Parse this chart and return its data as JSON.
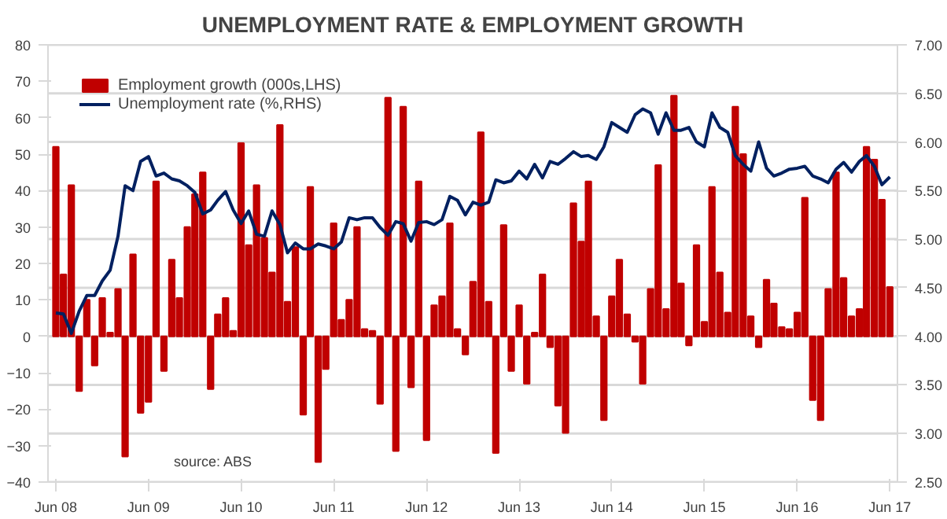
{
  "chart_data": {
    "type": "bar",
    "title": "UNEMPLOYMENT RATE & EMPLOYMENT GROWTH",
    "x": [
      "2008-06",
      "2008-07",
      "2008-08",
      "2008-09",
      "2008-10",
      "2008-11",
      "2008-12",
      "2009-01",
      "2009-02",
      "2009-03",
      "2009-04",
      "2009-05",
      "2009-06",
      "2009-07",
      "2009-08",
      "2009-09",
      "2009-10",
      "2009-11",
      "2009-12",
      "2010-01",
      "2010-02",
      "2010-03",
      "2010-04",
      "2010-05",
      "2010-06",
      "2010-07",
      "2010-08",
      "2010-09",
      "2010-10",
      "2010-11",
      "2010-12",
      "2011-01",
      "2011-02",
      "2011-03",
      "2011-04",
      "2011-05",
      "2011-06",
      "2011-07",
      "2011-08",
      "2011-09",
      "2011-10",
      "2011-11",
      "2011-12",
      "2012-01",
      "2012-02",
      "2012-03",
      "2012-04",
      "2012-05",
      "2012-06",
      "2012-07",
      "2012-08",
      "2012-09",
      "2012-10",
      "2012-11",
      "2012-12",
      "2013-01",
      "2013-02",
      "2013-03",
      "2013-04",
      "2013-05",
      "2013-06",
      "2013-07",
      "2013-08",
      "2013-09",
      "2013-10",
      "2013-11",
      "2013-12",
      "2014-01",
      "2014-02",
      "2014-03",
      "2014-04",
      "2014-05",
      "2014-06",
      "2014-07",
      "2014-08",
      "2014-09",
      "2014-10",
      "2014-11",
      "2014-12",
      "2015-01",
      "2015-02",
      "2015-03",
      "2015-04",
      "2015-05",
      "2015-06",
      "2015-07",
      "2015-08",
      "2015-09",
      "2015-10",
      "2015-11",
      "2015-12",
      "2016-01",
      "2016-02",
      "2016-03",
      "2016-04",
      "2016-05",
      "2016-06",
      "2016-07",
      "2016-08",
      "2016-09",
      "2016-10",
      "2016-11",
      "2016-12",
      "2017-01",
      "2017-02",
      "2017-03",
      "2017-04",
      "2017-05",
      "2017-06"
    ],
    "series": [
      {
        "name": "Employment growth (000s,LHS)",
        "color": "#c00000",
        "values": [
          52,
          17,
          41.5,
          -15,
          10,
          -8,
          10.5,
          1,
          13,
          -33,
          22.5,
          -21,
          -18,
          42.5,
          -9.5,
          21,
          10.5,
          30,
          39,
          45,
          -14.5,
          6,
          10.5,
          1.5,
          53,
          25,
          41.5,
          27,
          17.5,
          58,
          9.5,
          24.5,
          -21.5,
          41,
          -34.5,
          -9,
          31,
          4.5,
          10,
          30,
          2,
          1.5,
          -18.5,
          65.5,
          -31.5,
          63,
          -14,
          42.5,
          -28.5,
          8.5,
          11,
          31,
          2,
          -5,
          15,
          56,
          9.5,
          -32,
          30.5,
          -9.5,
          8.5,
          -13,
          1,
          17,
          -3,
          -19,
          -26.5,
          36.5,
          26,
          42.5,
          5.5,
          -23,
          11,
          21,
          6,
          -1.5,
          -13,
          13,
          47,
          7.5,
          66,
          14.5,
          -2.5,
          25,
          4,
          41,
          17.5,
          6.5,
          63,
          50,
          5.5,
          -3,
          15.5,
          9,
          2.5,
          2,
          6.5,
          38,
          -17.5,
          -23,
          13,
          45,
          16,
          5.5,
          7.5,
          52,
          48.5,
          37.5,
          13.5
        ]
      },
      {
        "name": "Unemployment rate (%,RHS)",
        "type": "line",
        "axis": "y2",
        "color": "#002060",
        "values": [
          4.24,
          4.23,
          4.03,
          4.26,
          4.42,
          4.42,
          4.57,
          4.68,
          5.03,
          5.55,
          5.5,
          5.8,
          5.85,
          5.65,
          5.68,
          5.62,
          5.6,
          5.55,
          5.48,
          5.26,
          5.3,
          5.4,
          5.49,
          5.3,
          5.16,
          5.29,
          5.05,
          5.03,
          5.29,
          5.15,
          4.86,
          4.96,
          4.9,
          4.9,
          4.95,
          4.93,
          4.9,
          4.97,
          5.22,
          5.2,
          5.22,
          5.22,
          5.12,
          5.04,
          5.18,
          5.16,
          4.98,
          5.17,
          5.18,
          5.15,
          5.2,
          5.44,
          5.4,
          5.25,
          5.38,
          5.35,
          5.38,
          5.61,
          5.58,
          5.6,
          5.7,
          5.62,
          5.77,
          5.63,
          5.8,
          5.77,
          5.83,
          5.9,
          5.85,
          5.86,
          5.82,
          5.95,
          6.2,
          6.15,
          6.1,
          6.28,
          6.34,
          6.3,
          6.08,
          6.3,
          6.12,
          6.12,
          6.15,
          6.0,
          5.95,
          6.3,
          6.15,
          6.1,
          5.86,
          5.77,
          5.7,
          6.0,
          5.73,
          5.65,
          5.68,
          5.72,
          5.73,
          5.75,
          5.65,
          5.62,
          5.58,
          5.72,
          5.79,
          5.69,
          5.8,
          5.86,
          5.75,
          5.56,
          5.64
        ]
      }
    ],
    "xlim": [
      "2008-05",
      "2017-07"
    ],
    "xticks": [
      {
        "value": "2008-06",
        "label": "Jun 08"
      },
      {
        "value": "2009-06",
        "label": "Jun 09"
      },
      {
        "value": "2010-06",
        "label": "Jun 10"
      },
      {
        "value": "2011-06",
        "label": "Jun 11"
      },
      {
        "value": "2012-06",
        "label": "Jun 12"
      },
      {
        "value": "2013-06",
        "label": "Jun 13"
      },
      {
        "value": "2014-06",
        "label": "Jun 14"
      },
      {
        "value": "2015-06",
        "label": "Jun 15"
      },
      {
        "value": "2016-06",
        "label": "Jun 16"
      },
      {
        "value": "2017-06",
        "label": "Jun 17"
      }
    ],
    "ylim": [
      -40,
      80
    ],
    "yticks": [
      -40,
      -30,
      -20,
      -10,
      0,
      10,
      20,
      30,
      40,
      50,
      60,
      70,
      80
    ],
    "y2lim": [
      2.5,
      7.0
    ],
    "y2ticks": [
      {
        "value": 2.5,
        "label": "2.50"
      },
      {
        "value": 3.0,
        "label": "3.00"
      },
      {
        "value": 3.5,
        "label": "3.50"
      },
      {
        "value": 4.0,
        "label": "4.00"
      },
      {
        "value": 4.5,
        "label": "4.50"
      },
      {
        "value": 5.0,
        "label": "5.00"
      },
      {
        "value": 5.5,
        "label": "5.50"
      },
      {
        "value": 6.0,
        "label": "6.00"
      },
      {
        "value": 6.5,
        "label": "6.50"
      },
      {
        "value": 7.0,
        "label": "7.00"
      }
    ],
    "grid": "y2",
    "legend": "top left",
    "line_style": "solid",
    "annotations": [
      "source: ABS"
    ]
  }
}
